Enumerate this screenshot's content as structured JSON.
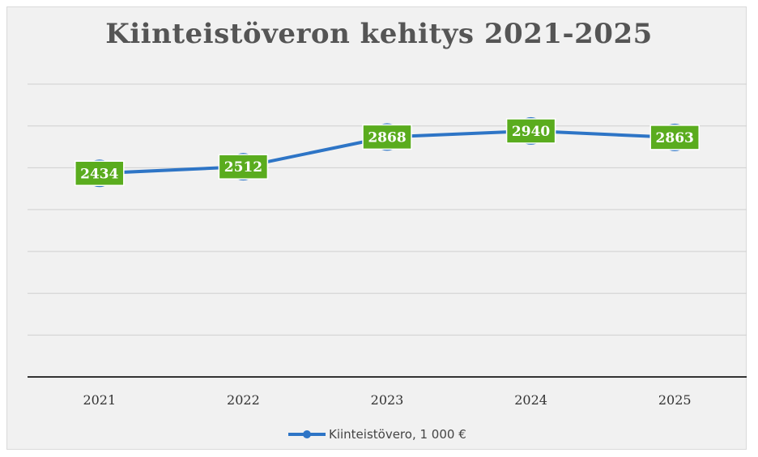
{
  "chart_data": {
    "type": "line",
    "title": "Kiinteistöveron kehitys 2021-2025",
    "xlabel": "",
    "ylabel": "",
    "categories": [
      "2021",
      "2022",
      "2023",
      "2024",
      "2025"
    ],
    "series": [
      {
        "name": "Kiinteistövero, 1 000 €",
        "values": [
          2434,
          2512,
          2868,
          2940,
          2863
        ]
      }
    ],
    "ylim": [
      0,
      3500
    ],
    "grid": true,
    "legend": "bottom",
    "colors": {
      "line": "#2e75c6",
      "label_bg": "#5aac1e",
      "label_border": "#ffffff",
      "gridline": "#cfcfcf",
      "axis": "#333333"
    }
  }
}
